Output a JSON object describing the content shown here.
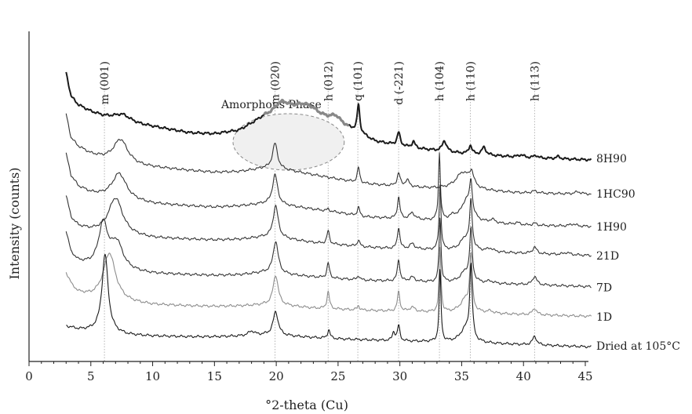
{
  "chart_data": {
    "type": "line",
    "xlabel": "°2-theta (Cu)",
    "ylabel": "Intensity (counts)",
    "xlim": [
      0,
      45
    ],
    "x_ticks": [
      0,
      5,
      10,
      15,
      20,
      25,
      30,
      35,
      40,
      45
    ],
    "y_ticks_shown": false,
    "grid": false,
    "peak_markers": [
      {
        "label": "m (001)",
        "x": 6.1
      },
      {
        "label": "m (020)",
        "x": 19.9
      },
      {
        "label": "h (012)",
        "x": 24.2
      },
      {
        "label": "q (101)",
        "x": 26.6
      },
      {
        "label": "d (-221)",
        "x": 29.9
      },
      {
        "label": "h (104)",
        "x": 33.2
      },
      {
        "label": "h (110)",
        "x": 35.7
      },
      {
        "label": "h (113)",
        "x": 40.9
      }
    ],
    "annotations": [
      {
        "text": "Amorphous Phase",
        "x_range": [
          16.5,
          25.5
        ]
      }
    ],
    "series": [
      {
        "name": "8H90",
        "color": "#1a1a1a",
        "stroke_width": 2.0,
        "offset": 6,
        "baseline": [
          [
            3,
            8.0
          ],
          [
            3.4,
            6.9
          ],
          [
            4,
            6.5
          ],
          [
            5,
            6.2
          ],
          [
            6,
            6.0
          ],
          [
            7,
            5.9
          ],
          [
            9,
            5.6
          ],
          [
            11,
            5.4
          ],
          [
            13,
            5.2
          ],
          [
            15,
            5.15
          ],
          [
            17,
            5.3
          ],
          [
            19,
            5.9
          ],
          [
            21,
            6.1
          ],
          [
            23,
            6.0
          ],
          [
            25,
            5.6
          ],
          [
            26.3,
            5.3
          ],
          [
            28,
            4.8
          ],
          [
            31,
            4.5
          ],
          [
            35,
            4.25
          ],
          [
            40,
            4.05
          ],
          [
            45.5,
            3.95
          ]
        ],
        "peaks": [
          [
            7.6,
            0.25,
            0.7
          ],
          [
            20.4,
            0.5,
            0.7
          ],
          [
            22.3,
            0.45,
            1.1
          ],
          [
            24.8,
            0.3,
            0.5
          ],
          [
            26.65,
            1.3,
            0.12
          ],
          [
            29.9,
            0.6,
            0.15
          ],
          [
            31.1,
            0.3,
            0.15
          ],
          [
            33.6,
            0.5,
            0.2
          ],
          [
            35.7,
            0.4,
            0.15
          ],
          [
            36.8,
            0.35,
            0.2
          ],
          [
            39.8,
            0.12,
            0.3
          ],
          [
            41,
            0.12,
            0.2
          ],
          [
            42.8,
            0.1,
            0.2
          ]
        ]
      },
      {
        "name": "1HC90",
        "color": "#333333",
        "stroke_width": 1.1,
        "offset": 5,
        "baseline": [
          [
            3,
            7.4
          ],
          [
            3.4,
            6.3
          ],
          [
            4,
            5.9
          ],
          [
            5,
            5.55
          ],
          [
            6,
            5.35
          ],
          [
            7,
            5.2
          ],
          [
            9,
            5.0
          ],
          [
            11,
            4.9
          ],
          [
            13,
            4.8
          ],
          [
            15,
            4.72
          ],
          [
            17,
            4.75
          ],
          [
            19,
            4.9
          ],
          [
            21,
            4.8
          ],
          [
            23,
            4.6
          ],
          [
            25,
            4.4
          ],
          [
            27,
            4.2
          ],
          [
            30,
            4.05
          ],
          [
            33,
            3.95
          ],
          [
            35,
            3.9
          ],
          [
            40,
            3.75
          ],
          [
            45.5,
            3.7
          ]
        ],
        "peaks": [
          [
            7.4,
            1.1,
            0.7
          ],
          [
            19.9,
            1.2,
            0.25
          ],
          [
            26.65,
            0.7,
            0.12
          ],
          [
            29.9,
            0.6,
            0.15
          ],
          [
            30.6,
            0.3,
            0.2
          ],
          [
            35.1,
            0.8,
            0.7
          ],
          [
            35.8,
            0.6,
            0.2
          ],
          [
            40.9,
            0.1,
            0.3
          ],
          [
            44.4,
            0.1,
            0.3
          ]
        ]
      },
      {
        "name": "1H90",
        "color": "#333333",
        "stroke_width": 1.1,
        "offset": 4,
        "baseline": [
          [
            3,
            6.9
          ],
          [
            3.4,
            5.9
          ],
          [
            4,
            5.4
          ],
          [
            5,
            5.1
          ],
          [
            6,
            4.95
          ],
          [
            8,
            4.75
          ],
          [
            10,
            4.6
          ],
          [
            13,
            4.5
          ],
          [
            15,
            4.45
          ],
          [
            17,
            4.5
          ],
          [
            19,
            4.6
          ],
          [
            21,
            4.5
          ],
          [
            23,
            4.35
          ],
          [
            25,
            4.2
          ],
          [
            27,
            4.0
          ],
          [
            30,
            3.9
          ],
          [
            33,
            3.8
          ],
          [
            35,
            3.75
          ],
          [
            40,
            3.6
          ],
          [
            45.5,
            3.55
          ]
        ],
        "peaks": [
          [
            7.3,
            1.2,
            0.7
          ],
          [
            19.9,
            1.4,
            0.25
          ],
          [
            24.2,
            0.1,
            0.12
          ],
          [
            26.65,
            0.4,
            0.12
          ],
          [
            29.9,
            1.0,
            0.12
          ],
          [
            31.0,
            0.3,
            0.25
          ],
          [
            33.2,
            3.1,
            0.09
          ],
          [
            34.3,
            0.2,
            0.4
          ],
          [
            35.4,
            1.0,
            0.5
          ],
          [
            35.75,
            1.4,
            0.12
          ],
          [
            37.5,
            0.15,
            0.3
          ],
          [
            39.5,
            0.1,
            0.3
          ],
          [
            40.9,
            0.1,
            0.2
          ],
          [
            44,
            0.1,
            0.3
          ]
        ]
      },
      {
        "name": "21D",
        "color": "#333333",
        "stroke_width": 1.1,
        "offset": 3,
        "baseline": [
          [
            3,
            6.3
          ],
          [
            3.4,
            5.3
          ],
          [
            4,
            4.9
          ],
          [
            5,
            4.7
          ],
          [
            6,
            4.6
          ],
          [
            8,
            4.45
          ],
          [
            10,
            4.35
          ],
          [
            13,
            4.3
          ],
          [
            15,
            4.27
          ],
          [
            17,
            4.3
          ],
          [
            19,
            4.4
          ],
          [
            21,
            4.3
          ],
          [
            23,
            4.15
          ],
          [
            25,
            4.05
          ],
          [
            27,
            3.95
          ],
          [
            30,
            3.85
          ],
          [
            33,
            3.8
          ],
          [
            35,
            3.75
          ],
          [
            40,
            3.65
          ],
          [
            45.5,
            3.55
          ]
        ],
        "peaks": [
          [
            7.0,
            1.7,
            0.7
          ],
          [
            19.95,
            1.5,
            0.25
          ],
          [
            24.2,
            0.6,
            0.12
          ],
          [
            26.65,
            0.3,
            0.12
          ],
          [
            29.9,
            1.0,
            0.12
          ],
          [
            31.0,
            0.25,
            0.25
          ],
          [
            33.25,
            3.0,
            0.09
          ],
          [
            35.3,
            0.6,
            0.5
          ],
          [
            35.75,
            2.1,
            0.12
          ],
          [
            37.3,
            0.15,
            0.3
          ],
          [
            40.9,
            0.3,
            0.2
          ],
          [
            43.5,
            0.1,
            0.3
          ]
        ]
      },
      {
        "name": "7D",
        "color": "#333333",
        "stroke_width": 1.1,
        "offset": 2,
        "baseline": [
          [
            3,
            6.0
          ],
          [
            3.4,
            5.0
          ],
          [
            4,
            4.6
          ],
          [
            5,
            4.4
          ],
          [
            6,
            4.3
          ],
          [
            8,
            4.15
          ],
          [
            10,
            4.05
          ],
          [
            13,
            4.0
          ],
          [
            15,
            3.97
          ],
          [
            17,
            4.0
          ],
          [
            19,
            4.1
          ],
          [
            21,
            4.0
          ],
          [
            23,
            3.9
          ],
          [
            25,
            3.82
          ],
          [
            27,
            3.75
          ],
          [
            30,
            3.7
          ],
          [
            33,
            3.65
          ],
          [
            35,
            3.62
          ],
          [
            40,
            3.55
          ],
          [
            45.5,
            3.45
          ]
        ],
        "peaks": [
          [
            6.0,
            2.0,
            0.45
          ],
          [
            7.1,
            1.2,
            0.6
          ],
          [
            19.95,
            1.5,
            0.25
          ],
          [
            24.2,
            0.7,
            0.12
          ],
          [
            26.65,
            0.2,
            0.12
          ],
          [
            29.9,
            1.0,
            0.12
          ],
          [
            31.0,
            0.2,
            0.25
          ],
          [
            33.25,
            3.0,
            0.09
          ],
          [
            35.3,
            0.5,
            0.5
          ],
          [
            35.75,
            2.3,
            0.12
          ],
          [
            37.3,
            0.1,
            0.3
          ],
          [
            40.9,
            0.4,
            0.2
          ]
        ]
      },
      {
        "name": "1D",
        "color": "#8c8c8c",
        "stroke_width": 1.1,
        "offset": 1,
        "baseline": [
          [
            3,
            5.4
          ],
          [
            3.5,
            4.8
          ],
          [
            4,
            4.5
          ],
          [
            5,
            4.3
          ],
          [
            6,
            4.2
          ],
          [
            8,
            4.05
          ],
          [
            10,
            3.95
          ],
          [
            13,
            3.9
          ],
          [
            15,
            3.88
          ],
          [
            17,
            3.9
          ],
          [
            19,
            3.95
          ],
          [
            21,
            3.9
          ],
          [
            23,
            3.8
          ],
          [
            25,
            3.75
          ],
          [
            27,
            3.7
          ],
          [
            30,
            3.65
          ],
          [
            33,
            3.6
          ],
          [
            35,
            3.58
          ],
          [
            40,
            3.5
          ],
          [
            45.5,
            3.42
          ]
        ],
        "peaks": [
          [
            6.5,
            2.2,
            0.6
          ],
          [
            19.95,
            1.4,
            0.25
          ],
          [
            24.2,
            0.8,
            0.12
          ],
          [
            26.65,
            0.2,
            0.12
          ],
          [
            29.9,
            0.9,
            0.12
          ],
          [
            31.0,
            0.2,
            0.25
          ],
          [
            33.25,
            3.0,
            0.09
          ],
          [
            35.3,
            0.6,
            0.5
          ],
          [
            35.75,
            2.5,
            0.12
          ],
          [
            37.3,
            0.1,
            0.3
          ],
          [
            40.9,
            0.3,
            0.2
          ]
        ]
      },
      {
        "name": "Dried at 105°C",
        "color": "#1a1a1a",
        "stroke_width": 1.1,
        "offset": 0,
        "baseline": [
          [
            3,
            4.3
          ],
          [
            4,
            4.15
          ],
          [
            5,
            4.1
          ],
          [
            6,
            4.05
          ],
          [
            8,
            3.9
          ],
          [
            10,
            3.85
          ],
          [
            13,
            3.82
          ],
          [
            15,
            3.82
          ],
          [
            17,
            3.85
          ],
          [
            19,
            3.9
          ],
          [
            21,
            3.85
          ],
          [
            23,
            3.78
          ],
          [
            25,
            3.72
          ],
          [
            27,
            3.68
          ],
          [
            30,
            3.62
          ],
          [
            33,
            3.58
          ],
          [
            35,
            3.55
          ],
          [
            40,
            3.45
          ],
          [
            45.5,
            3.35
          ]
        ],
        "peaks": [
          [
            6.15,
            3.6,
            0.3
          ],
          [
            18.0,
            0.2,
            0.3
          ],
          [
            19.95,
            1.1,
            0.25
          ],
          [
            24.25,
            0.4,
            0.12
          ],
          [
            29.5,
            0.4,
            0.12
          ],
          [
            29.9,
            0.7,
            0.12
          ],
          [
            33.25,
            3.3,
            0.09
          ],
          [
            35.3,
            0.6,
            0.5
          ],
          [
            35.75,
            3.4,
            0.12
          ],
          [
            40.9,
            0.4,
            0.2
          ]
        ]
      }
    ]
  }
}
